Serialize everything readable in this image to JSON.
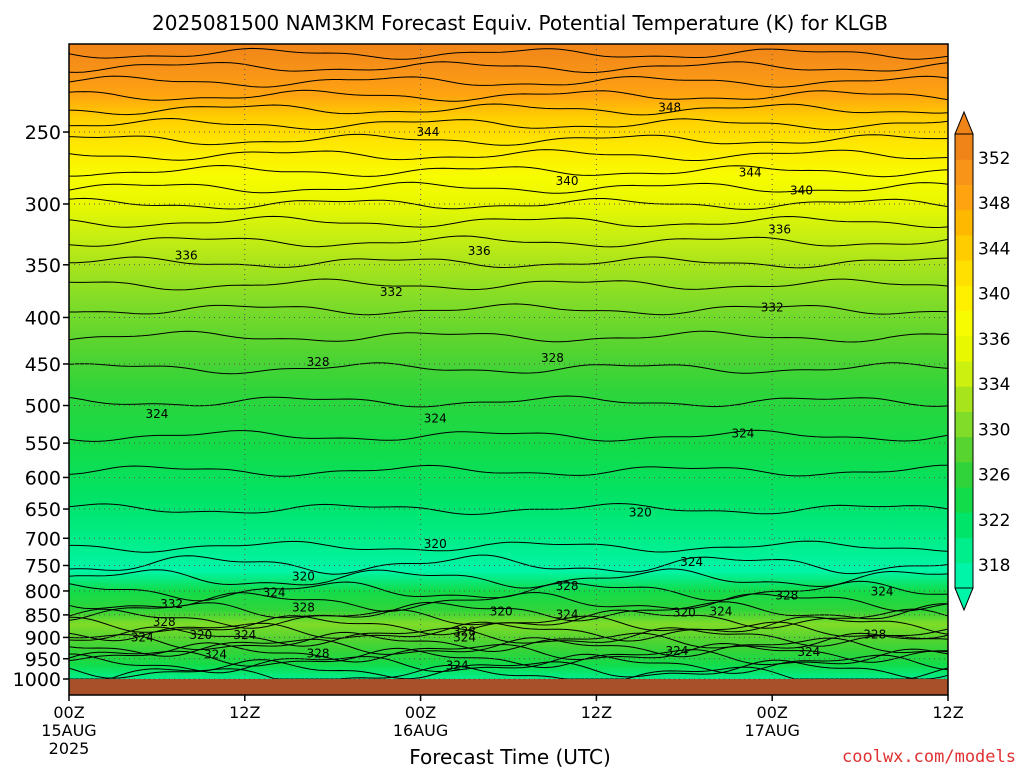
{
  "chart_data": {
    "type": "contour",
    "title": "2025081500 NAM3KM Forecast Equiv. Potential Temperature (K) for KLGB",
    "xlabel": "Forecast Time (UTC)",
    "ylabel": "",
    "watermark": "coolwx.com/models",
    "x_ticks": [
      {
        "h": 0,
        "label": "00Z",
        "sub": "15AUG",
        "year": "2025"
      },
      {
        "h": 12,
        "label": "12Z",
        "sub": "",
        "year": ""
      },
      {
        "h": 24,
        "label": "00Z",
        "sub": "16AUG",
        "year": ""
      },
      {
        "h": 36,
        "label": "12Z",
        "sub": "",
        "year": ""
      },
      {
        "h": 48,
        "label": "00Z",
        "sub": "17AUG",
        "year": ""
      },
      {
        "h": 60,
        "label": "12Z",
        "sub": "",
        "year": ""
      }
    ],
    "xlim": [
      0,
      60
    ],
    "y_ticks": [
      250,
      300,
      350,
      400,
      450,
      500,
      550,
      600,
      650,
      700,
      750,
      800,
      850,
      900,
      950,
      1000
    ],
    "y_ticks_labels": [
      "250",
      "300",
      "350",
      "400",
      "450",
      "500",
      "550",
      "600",
      "650",
      "700",
      "750",
      "800",
      "850",
      "900",
      "950",
      "1000"
    ],
    "ylim": [
      200,
      1000
    ],
    "y_scale": "log",
    "grid": true,
    "colorbar": {
      "levels": [
        318,
        320,
        322,
        324,
        326,
        328,
        330,
        332,
        334,
        336,
        338,
        340,
        342,
        344,
        346,
        348,
        350,
        352
      ],
      "tick_labels": [
        "318",
        "322",
        "326",
        "330",
        "334",
        "336",
        "340",
        "344",
        "348",
        "352"
      ],
      "colors": [
        "#00f5a8",
        "#00ee8c",
        "#00e46a",
        "#12dc4a",
        "#30d43a",
        "#58d430",
        "#80dc28",
        "#a8e41c",
        "#ccf010",
        "#e8f800",
        "#f8fc00",
        "#fff000",
        "#ffe000",
        "#ffcc00",
        "#ffb800",
        "#ffa410",
        "#f89418",
        "#f08418"
      ],
      "tick_colors": {
        "318": "#00f5a8",
        "322": "#00e46a",
        "326": "#30d43a",
        "330": "#80dc28",
        "334": "#ccf010",
        "336": "#e8f800",
        "340": "#fff000",
        "344": "#ffcc00",
        "348": "#ffa410",
        "352": "#f08418"
      }
    },
    "contour_labels": [
      {
        "v": "348",
        "h": 41.0,
        "p": 235
      },
      {
        "v": "344",
        "h": 24.5,
        "p": 250
      },
      {
        "v": "344",
        "h": 46.5,
        "p": 277
      },
      {
        "v": "340",
        "h": 34.0,
        "p": 283
      },
      {
        "v": "340",
        "h": 50.0,
        "p": 290
      },
      {
        "v": "336",
        "h": 48.5,
        "p": 320
      },
      {
        "v": "336",
        "h": 8.0,
        "p": 342
      },
      {
        "v": "336",
        "h": 28.0,
        "p": 338
      },
      {
        "v": "332",
        "h": 22.0,
        "p": 375
      },
      {
        "v": "332",
        "h": 48.0,
        "p": 390
      },
      {
        "v": "328",
        "h": 17.0,
        "p": 448
      },
      {
        "v": "328",
        "h": 33.0,
        "p": 443
      },
      {
        "v": "324",
        "h": 6.0,
        "p": 511
      },
      {
        "v": "324",
        "h": 25.0,
        "p": 517
      },
      {
        "v": "324",
        "h": 46.0,
        "p": 537
      },
      {
        "v": "320",
        "h": 39.0,
        "p": 656
      },
      {
        "v": "320",
        "h": 25.0,
        "p": 710
      },
      {
        "v": "320",
        "h": 16.0,
        "p": 771
      },
      {
        "v": "320",
        "h": 29.5,
        "p": 843
      },
      {
        "v": "320",
        "h": 42.0,
        "p": 845
      },
      {
        "v": "320",
        "h": 9.0,
        "p": 895
      },
      {
        "v": "324",
        "h": 42.5,
        "p": 743
      },
      {
        "v": "324",
        "h": 14.0,
        "p": 803
      },
      {
        "v": "324",
        "h": 34.0,
        "p": 849
      },
      {
        "v": "324",
        "h": 44.5,
        "p": 843
      },
      {
        "v": "324",
        "h": 55.5,
        "p": 801
      },
      {
        "v": "324",
        "h": 5.0,
        "p": 900
      },
      {
        "v": "324",
        "h": 12.0,
        "p": 894
      },
      {
        "v": "324",
        "h": 10.0,
        "p": 940
      },
      {
        "v": "324",
        "h": 27.0,
        "p": 900
      },
      {
        "v": "324",
        "h": 41.5,
        "p": 931
      },
      {
        "v": "324",
        "h": 26.5,
        "p": 966
      },
      {
        "v": "324",
        "h": 50.5,
        "p": 934
      },
      {
        "v": "328",
        "h": 6.5,
        "p": 866
      },
      {
        "v": "328",
        "h": 16.0,
        "p": 834
      },
      {
        "v": "328",
        "h": 34.0,
        "p": 790
      },
      {
        "v": "328",
        "h": 49.0,
        "p": 809
      },
      {
        "v": "328",
        "h": 27.0,
        "p": 887
      },
      {
        "v": "328",
        "h": 55.0,
        "p": 893
      },
      {
        "v": "328",
        "h": 17.0,
        "p": 937
      },
      {
        "v": "332",
        "h": 7.0,
        "p": 827
      }
    ]
  }
}
